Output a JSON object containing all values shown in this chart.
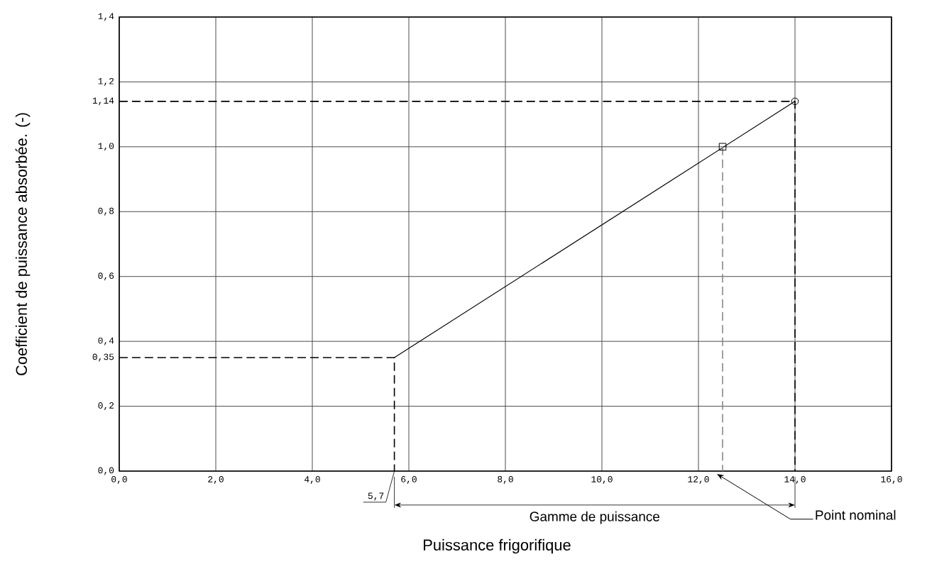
{
  "chart_data": {
    "type": "line",
    "xlabel": "Puissance frigorifique",
    "ylabel": "Coefficient de puissance absorbée. (-)",
    "xlim": [
      0,
      16
    ],
    "ylim": [
      0,
      1.4
    ],
    "xticks": [
      {
        "value": 0,
        "label": "0,0"
      },
      {
        "value": 2,
        "label": "2,0"
      },
      {
        "value": 4,
        "label": "4,0"
      },
      {
        "value": 6,
        "label": "6,0"
      },
      {
        "value": 8,
        "label": "8,0"
      },
      {
        "value": 10,
        "label": "10,0"
      },
      {
        "value": 12,
        "label": "12,0"
      },
      {
        "value": 14,
        "label": "14,0"
      },
      {
        "value": 16,
        "label": "16,0"
      }
    ],
    "yticks": [
      {
        "value": 0,
        "label": "0,0"
      },
      {
        "value": 0.2,
        "label": "0,2"
      },
      {
        "value": 0.35,
        "label": "0,35"
      },
      {
        "value": 0.4,
        "label": "0,4"
      },
      {
        "value": 0.6,
        "label": "0,6"
      },
      {
        "value": 0.8,
        "label": "0,8"
      },
      {
        "value": 1.0,
        "label": "1,0"
      },
      {
        "value": 1.14,
        "label": "1,14"
      },
      {
        "value": 1.2,
        "label": "1,2"
      },
      {
        "value": 1.4,
        "label": "1,4"
      }
    ],
    "grid": true,
    "series": [
      {
        "color": "#000000",
        "line_style": "solid",
        "x": [
          5.7,
          14
        ],
        "values": [
          0.35,
          1.14
        ]
      },
      {
        "color": "#000000",
        "line_style": "dashed",
        "x": [
          0,
          5.7,
          5.7
        ],
        "values": [
          0.35,
          0.35,
          0
        ]
      },
      {
        "color": "#000000",
        "line_style": "dashed",
        "x": [
          0,
          14,
          14
        ],
        "values": [
          1.14,
          1.14,
          0
        ]
      },
      {
        "color": "#888888",
        "line_style": "dashed",
        "x": [
          12.5,
          12.5
        ],
        "values": [
          1.0,
          0
        ]
      },
      {
        "type": "scatter",
        "color": "#000000",
        "marker": "square",
        "x": [
          12.5
        ],
        "values": [
          1.0
        ]
      },
      {
        "type": "scatter",
        "color": "#000000",
        "marker": "circle",
        "x": [
          14
        ],
        "values": [
          1.14
        ]
      }
    ],
    "annotations": [
      {
        "text": "5,7",
        "x": 5.7,
        "y": 0
      },
      "Gamme de puissance",
      "Point nominal"
    ]
  }
}
